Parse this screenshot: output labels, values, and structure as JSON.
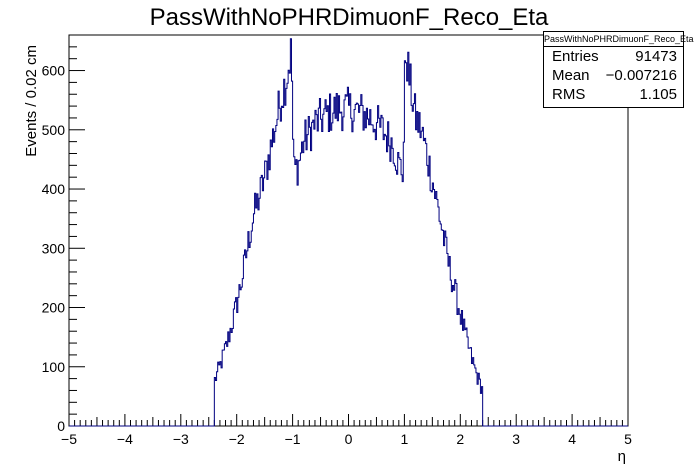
{
  "chart_data": {
    "type": "histogram",
    "title": "PassWithNoPHRDimuonF_Reco_Eta",
    "xlabel": "η",
    "ylabel": "Events / 0.02 cm",
    "xlim": [
      -5,
      5
    ],
    "ylim": [
      0,
      660
    ],
    "x_ticks": [
      "−5",
      "−4",
      "−3",
      "−2",
      "−1",
      "0",
      "1",
      "2",
      "3",
      "4",
      "5"
    ],
    "y_ticks": [
      "0",
      "100",
      "200",
      "300",
      "400",
      "500",
      "600"
    ],
    "line_color": "#000080",
    "grid": false,
    "profile_points": {
      "x": [
        -2.4,
        -2.3,
        -2.2,
        -2.1,
        -2.0,
        -1.9,
        -1.8,
        -1.7,
        -1.6,
        -1.5,
        -1.4,
        -1.3,
        -1.2,
        -1.1,
        -1.02,
        -0.98,
        -0.9,
        -0.8,
        -0.6,
        -0.4,
        -0.2,
        0.0,
        0.2,
        0.4,
        0.6,
        0.8,
        0.9,
        0.98,
        1.02,
        1.1,
        1.2,
        1.3,
        1.4,
        1.5,
        1.6,
        1.7,
        1.8,
        1.9,
        2.0,
        2.1,
        2.2,
        2.3,
        2.4
      ],
      "y": [
        75,
        100,
        130,
        165,
        205,
        250,
        305,
        355,
        385,
        420,
        465,
        510,
        555,
        590,
        635,
        430,
        440,
        480,
        510,
        525,
        535,
        535,
        530,
        520,
        500,
        475,
        440,
        430,
        635,
        580,
        520,
        500,
        460,
        415,
        370,
        320,
        270,
        230,
        190,
        150,
        115,
        85,
        60
      ]
    },
    "stats": {
      "name": "PassWithNoPHRDimuonF_Reco_Eta",
      "entries_label": "Entries",
      "entries": "91473",
      "mean_label": "Mean",
      "mean": "−0.007216",
      "rms_label": "RMS",
      "rms": "1.105"
    }
  }
}
